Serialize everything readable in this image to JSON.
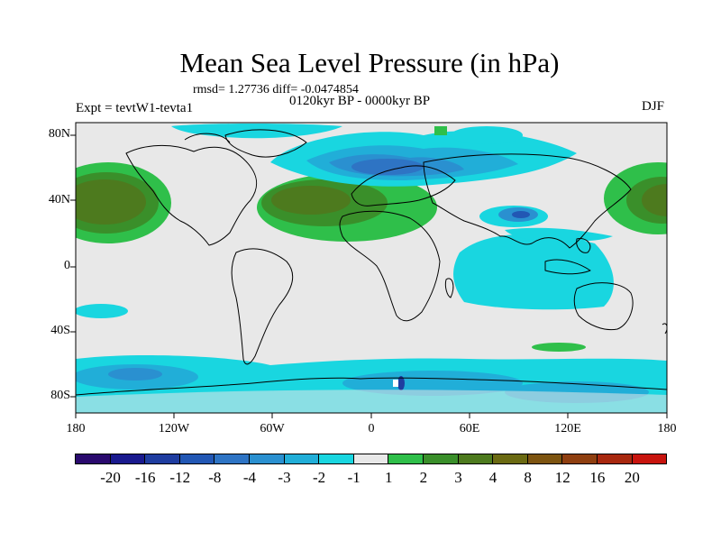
{
  "title": "Mean Sea Level Pressure (in hPa)",
  "stats": "rmsd= 1.27736 diff= -0.0474854",
  "experiment": "Expt = tevtW1-tevta1",
  "period": "0120kyr BP - 0000kyr BP",
  "season": "DJF",
  "lat_labels": [
    "80N",
    "40N",
    "0",
    "40S",
    "80S"
  ],
  "lon_labels": [
    "180",
    "120W",
    "60W",
    "0",
    "60E",
    "120E",
    "180"
  ],
  "colorbar": {
    "colors": [
      "#2a0a6e",
      "#1a1a8e",
      "#1f3da0",
      "#2257b4",
      "#2e74c4",
      "#2a90d0",
      "#21aed8",
      "#19d6e0",
      "#e8e8e8",
      "#2fbf4a",
      "#3a8f2a",
      "#4d7a1e",
      "#6b6a12",
      "#7d5410",
      "#8f3f10",
      "#a8280f",
      "#c8140e"
    ],
    "labels": [
      "-20",
      "-16",
      "-12",
      "-8",
      "-4",
      "-3",
      "-2",
      "-1",
      "1",
      "2",
      "3",
      "4",
      "8",
      "12",
      "16",
      "20"
    ]
  }
}
